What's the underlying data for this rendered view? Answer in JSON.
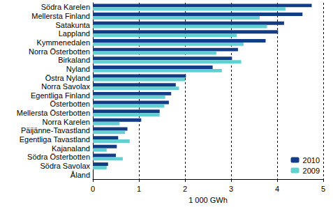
{
  "chart_data": {
    "type": "bar",
    "orientation": "horizontal",
    "categories": [
      "Södra Karelen",
      "Mellersta Finland",
      "Satakunta",
      "Lappland",
      "Kymmenedalen",
      "Norra Österbotten",
      "Birkaland",
      "Nyland",
      "Östra Nyland",
      "Norra Savolax",
      "Egentliga Finland",
      "Österbotten",
      "Mellersta Österbotten",
      "Norra Karelen",
      "Päijänne-Tavastland",
      "Egentliga Tavastland",
      "Kajanaland",
      "Södra Österbotten",
      "Södra Savolax",
      "Åland"
    ],
    "series": [
      {
        "name": "2010",
        "color": "#123d84",
        "values": [
          4.75,
          4.55,
          4.15,
          4.02,
          3.75,
          3.15,
          3.02,
          2.6,
          2.02,
          1.8,
          1.7,
          1.65,
          1.45,
          1.05,
          0.75,
          0.55,
          0.52,
          0.5,
          0.33,
          0
        ]
      },
      {
        "name": "2009",
        "color": "#62cfd3",
        "values": [
          4.18,
          3.62,
          3.78,
          3.12,
          3.27,
          2.68,
          3.22,
          2.8,
          2.0,
          1.87,
          1.57,
          1.55,
          1.45,
          0.58,
          0.7,
          0.8,
          0.3,
          0.65,
          0.3,
          0
        ]
      }
    ],
    "x_label": "1 000 GWh",
    "xlim": [
      0,
      5
    ],
    "xticks": [
      0,
      1,
      2,
      3,
      4,
      5
    ],
    "grid": true,
    "legend": "lower right"
  }
}
